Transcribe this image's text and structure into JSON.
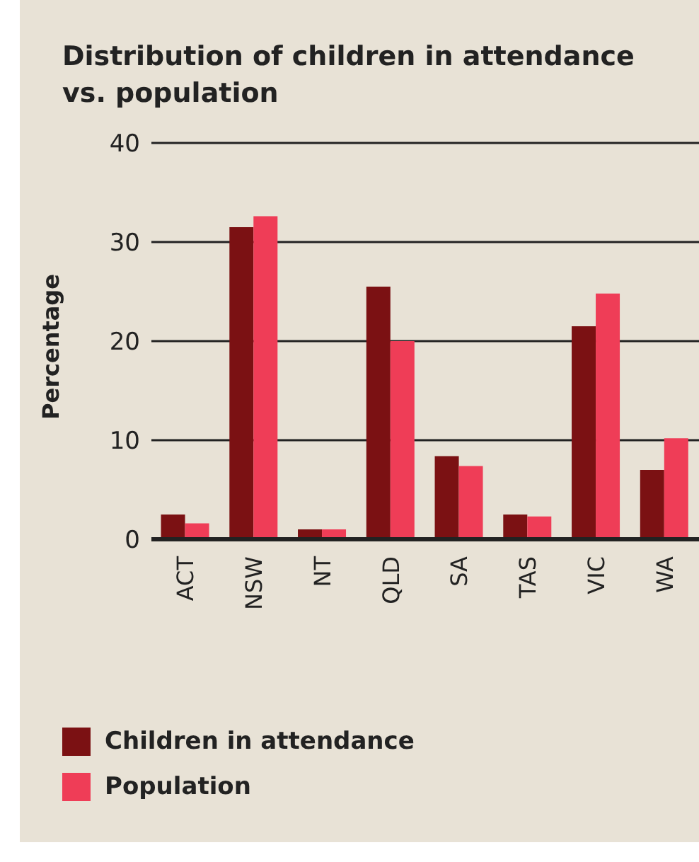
{
  "chart_data": {
    "type": "bar",
    "title": "Distribution of children in attendance vs. population",
    "ylabel": "Percentage",
    "categories": [
      "ACT",
      "NSW",
      "NT",
      "QLD",
      "SA",
      "TAS",
      "VIC",
      "WA"
    ],
    "series": [
      {
        "name": "Children in attendance",
        "color": "#7b1113",
        "values": [
          2.5,
          31.5,
          1.0,
          25.5,
          8.4,
          2.5,
          21.5,
          7.0
        ]
      },
      {
        "name": "Population",
        "color": "#ef3d57",
        "values": [
          1.6,
          32.6,
          1.0,
          20.0,
          7.4,
          2.3,
          24.8,
          10.2
        ]
      }
    ],
    "ylim": [
      0,
      40
    ],
    "yticks": [
      0,
      10,
      20,
      30,
      40
    ],
    "grid": "y",
    "legend": "bottom"
  }
}
